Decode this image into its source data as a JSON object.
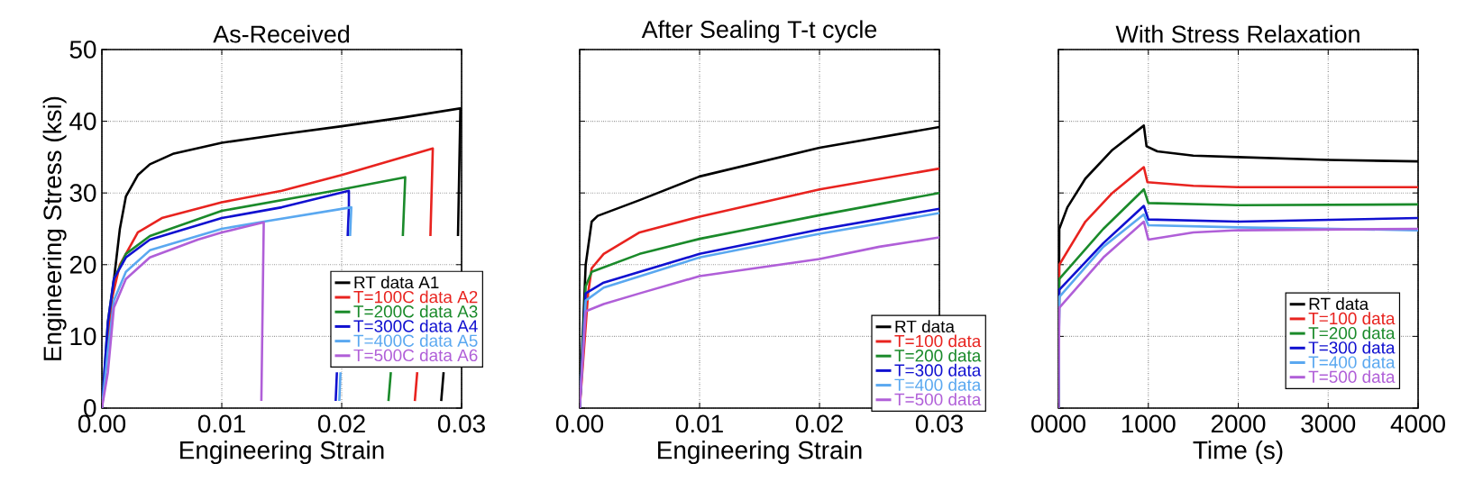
{
  "chart_data": [
    {
      "type": "line",
      "title": "As-Received",
      "xlabel": "Engineering Strain",
      "ylabel": "Engineering Stress (ksi)",
      "xlim": [
        0,
        0.03
      ],
      "ylim": [
        0,
        50
      ],
      "xticks": [
        {
          "value": 0,
          "label": "0.00"
        },
        {
          "value": 0.01,
          "label": "0.01"
        },
        {
          "value": 0.02,
          "label": "0.02"
        },
        {
          "value": 0.03,
          "label": "0.03"
        }
      ],
      "yticks": [
        0,
        10,
        20,
        30,
        40,
        50
      ],
      "grid": true,
      "legend": "bottom right",
      "series": [
        {
          "name": "RT data A1",
          "color": "#000000",
          "x": [
            0,
            0.0008,
            0.0015,
            0.002,
            0.003,
            0.004,
            0.006,
            0.01,
            0.015,
            0.02,
            0.025,
            0.0299,
            0.0297,
            0.0291,
            0.0285,
            0.0283
          ],
          "values": [
            0,
            15,
            25,
            29.5,
            32.5,
            34,
            35.5,
            37,
            38.2,
            39.3,
            40.5,
            41.8,
            24,
            null,
            5,
            1
          ]
        },
        {
          "name": "T=100C data A2",
          "color": "#e8231f",
          "x": [
            0,
            0.0008,
            0.0015,
            0.003,
            0.005,
            0.01,
            0.015,
            0.02,
            0.0276,
            0.0274,
            0.0267,
            0.0263,
            0.0261
          ],
          "values": [
            0,
            15,
            20,
            24.5,
            26.5,
            28.7,
            30.3,
            32.5,
            36.2,
            24,
            null,
            5,
            1
          ]
        },
        {
          "name": "T=200C data A3",
          "color": "#1a8a2a",
          "x": [
            0,
            0.0005,
            0.001,
            0.002,
            0.004,
            0.01,
            0.02,
            0.0253,
            0.0251,
            0.0245,
            0.0241,
            0.0239
          ],
          "values": [
            0,
            12,
            18,
            21.5,
            24,
            27.5,
            30.5,
            32.2,
            24,
            null,
            5,
            1
          ]
        },
        {
          "name": "T=300C data A4",
          "color": "#1010d0",
          "x": [
            0,
            0.0005,
            0.001,
            0.002,
            0.004,
            0.008,
            0.01,
            0.015,
            0.0206,
            0.0206,
            0.0205,
            0.02,
            0.0196,
            0.0195
          ],
          "values": [
            0,
            12,
            18,
            21,
            23.5,
            25.5,
            26.5,
            28,
            30.3,
            28,
            24,
            null,
            5,
            1
          ]
        },
        {
          "name": "T=400C data A5",
          "color": "#5aa8f0",
          "x": [
            0,
            0.0005,
            0.001,
            0.002,
            0.004,
            0.01,
            0.0135,
            0.0208,
            0.0207,
            0.0203,
            0.0199,
            0.0198
          ],
          "values": [
            0,
            8,
            15,
            19,
            22,
            25,
            26,
            28,
            24,
            null,
            5,
            1
          ]
        },
        {
          "name": "T=500C data A6",
          "color": "#b05fd8",
          "x": [
            0,
            0.0005,
            0.001,
            0.002,
            0.004,
            0.008,
            0.01,
            0.0135,
            0.0133
          ],
          "values": [
            0,
            5,
            14,
            18,
            21,
            23.5,
            24.5,
            25.9,
            1
          ]
        }
      ]
    },
    {
      "type": "line",
      "title": "After Sealing T-t cycle",
      "xlabel": "Engineering Strain",
      "xlim": [
        0,
        0.03
      ],
      "ylim": [
        0,
        50
      ],
      "xticks": [
        {
          "value": 0,
          "label": "0.00"
        },
        {
          "value": 0.01,
          "label": "0.01"
        },
        {
          "value": 0.02,
          "label": "0.02"
        },
        {
          "value": 0.03,
          "label": "0.03"
        }
      ],
      "yticks": [
        0,
        10,
        20,
        30,
        40,
        50
      ],
      "grid": true,
      "legend": "bottom right",
      "tick_labels": "x",
      "series": [
        {
          "name": "RT data",
          "color": "#000000",
          "x": [
            0,
            0.0005,
            0.001,
            0.0015,
            0.005,
            0.01,
            0.02,
            0.03
          ],
          "values": [
            0,
            20,
            26,
            26.8,
            29,
            32.3,
            36.3,
            39.2
          ]
        },
        {
          "name": "T=100 data",
          "color": "#e8231f",
          "x": [
            0,
            0.0007,
            0.001,
            0.002,
            0.005,
            0.01,
            0.02,
            0.03
          ],
          "values": [
            0,
            16,
            19.5,
            21.5,
            24.5,
            26.7,
            30.5,
            33.4
          ]
        },
        {
          "name": "T=200 data",
          "color": "#1a8a2a",
          "x": [
            0,
            0.0005,
            0.001,
            0.005,
            0.01,
            0.02,
            0.03
          ],
          "values": [
            0,
            17,
            19,
            21.5,
            23.6,
            26.9,
            30
          ]
        },
        {
          "name": "T=300 data",
          "color": "#1010d0",
          "x": [
            0,
            0.0005,
            0.002,
            0.01,
            0.02,
            0.03
          ],
          "values": [
            0,
            16,
            17.5,
            21.5,
            24.9,
            27.8
          ]
        },
        {
          "name": "T=400 data",
          "color": "#5aa8f0",
          "x": [
            0,
            0.0005,
            0.002,
            0.01,
            0.02,
            0.03
          ],
          "values": [
            0,
            15,
            16.8,
            21,
            24.3,
            27.2
          ]
        },
        {
          "name": "T=500 data",
          "color": "#b05fd8",
          "x": [
            0,
            0.0005,
            0.002,
            0.005,
            0.01,
            0.015,
            0.02,
            0.025,
            0.03
          ],
          "values": [
            0,
            13.5,
            14.5,
            16,
            18.4,
            19.6,
            20.8,
            22.5,
            23.8
          ]
        }
      ]
    },
    {
      "type": "line",
      "title": "With Stress Relaxation",
      "xlabel": "Time (s)",
      "xlim": [
        0,
        4000
      ],
      "ylim": [
        0,
        50
      ],
      "xticks": [
        {
          "value": 0,
          "label": "0000"
        },
        1000,
        2000,
        3000,
        4000
      ],
      "yticks": [
        0,
        10,
        20,
        30,
        40,
        50
      ],
      "grid": true,
      "legend": "bottom right",
      "tick_labels": "x",
      "series": [
        {
          "name": "RT data",
          "color": "#000000",
          "x": [
            0,
            10,
            100,
            300,
            600,
            950,
            980,
            1100,
            1500,
            2000,
            3000,
            4000
          ],
          "values": [
            0,
            25,
            28,
            32,
            36,
            39.4,
            36.5,
            35.8,
            35.2,
            35,
            34.6,
            34.4
          ]
        },
        {
          "name": "T=100 data",
          "color": "#e8231f",
          "x": [
            0,
            10,
            300,
            600,
            950,
            990,
            1500,
            2000,
            4000
          ],
          "values": [
            0,
            20,
            26,
            30,
            33.6,
            31.5,
            31,
            30.8,
            30.8
          ]
        },
        {
          "name": "T=200 data",
          "color": "#1a8a2a",
          "x": [
            0,
            10,
            500,
            950,
            1000,
            2000,
            4000
          ],
          "values": [
            0,
            18,
            25,
            30.5,
            28.6,
            28.3,
            28.4
          ]
        },
        {
          "name": "T=300 data",
          "color": "#1010d0",
          "x": [
            0,
            10,
            500,
            950,
            1000,
            2000,
            4000
          ],
          "values": [
            0,
            16.5,
            23,
            28.2,
            26.3,
            26,
            26.5
          ]
        },
        {
          "name": "T=400 data",
          "color": "#5aa8f0",
          "x": [
            0,
            10,
            500,
            950,
            1000,
            2000,
            4000
          ],
          "values": [
            0,
            15.5,
            22.5,
            27,
            25.5,
            25.2,
            24.8
          ]
        },
        {
          "name": "T=500 data",
          "color": "#b05fd8",
          "x": [
            0,
            10,
            500,
            950,
            1000,
            1500,
            2000,
            4000
          ],
          "values": [
            0,
            14,
            21,
            26,
            23.5,
            24.5,
            24.8,
            25
          ]
        }
      ]
    }
  ]
}
